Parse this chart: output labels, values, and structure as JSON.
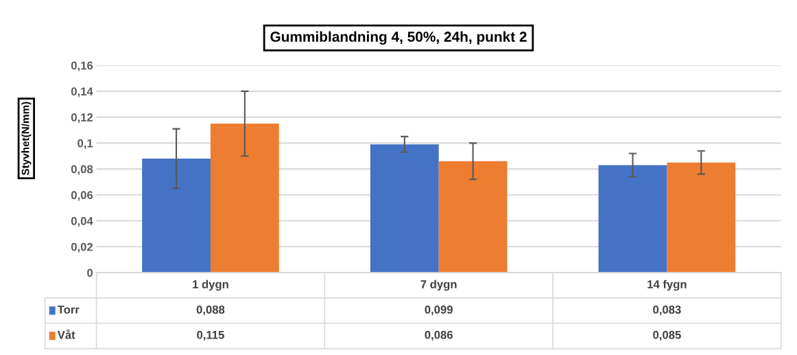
{
  "chart_data": {
    "type": "bar",
    "title": "Gummiblandning 4, 50%, 24h, punkt 2",
    "ylabel": "Styvhet(N/mm)",
    "categories": [
      "1 dygn",
      "7 dygn",
      "14 fygn"
    ],
    "series": [
      {
        "name": "Torr",
        "color": "#4472c4",
        "values": [
          0.088,
          0.099,
          0.083
        ],
        "errors": [
          0.023,
          0.006,
          0.009
        ],
        "value_labels": [
          "0,088",
          "0,099",
          "0,083"
        ]
      },
      {
        "name": "Våt",
        "color": "#ed7d31",
        "values": [
          0.115,
          0.086,
          0.085
        ],
        "errors": [
          0.025,
          0.014,
          0.009
        ],
        "value_labels": [
          "0,115",
          "0,086",
          "0,085"
        ]
      }
    ],
    "ylim": [
      0,
      0.16
    ],
    "yticks": [
      {
        "value": 0,
        "label": "0"
      },
      {
        "value": 0.02,
        "label": "0,02"
      },
      {
        "value": 0.04,
        "label": "0,04"
      },
      {
        "value": 0.06,
        "label": "0,06"
      },
      {
        "value": 0.08,
        "label": "0,08"
      },
      {
        "value": 0.1,
        "label": "0,1"
      },
      {
        "value": 0.12,
        "label": "0,12"
      },
      {
        "value": 0.14,
        "label": "0,14"
      },
      {
        "value": 0.16,
        "label": "0,16"
      }
    ],
    "grid": "y",
    "legend": "bottom"
  }
}
